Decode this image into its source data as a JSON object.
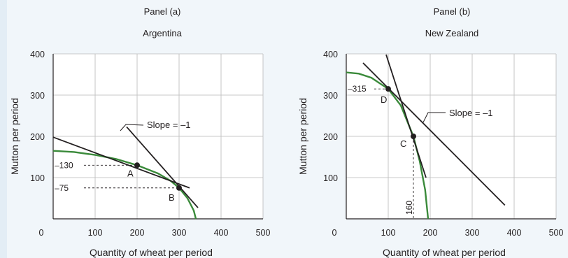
{
  "chart_data": [
    {
      "type": "line",
      "panel_label": "Panel (a)",
      "title": "Argentina",
      "xlabel": "Quantity of wheat per period",
      "ylabel": "Mutton per period",
      "xlim": [
        0,
        500
      ],
      "ylim": [
        0,
        400
      ],
      "x_ticks": [
        0,
        100,
        200,
        300,
        400,
        500
      ],
      "y_ticks": [
        100,
        200,
        300,
        400
      ],
      "grid": true,
      "curve_color": "#3a8a3a",
      "line_color": "#231f20",
      "ppc": [
        [
          0,
          165
        ],
        [
          50,
          162
        ],
        [
          100,
          155
        ],
        [
          150,
          145
        ],
        [
          200,
          130
        ],
        [
          250,
          110
        ],
        [
          280,
          92
        ],
        [
          300,
          75
        ],
        [
          320,
          50
        ],
        [
          335,
          20
        ],
        [
          340,
          0
        ]
      ],
      "tangent_lines": [
        {
          "points": [
            [
              0,
              198
            ],
            [
              325,
              75
            ]
          ]
        },
        {
          "points": [
            [
              175,
              223
            ],
            [
              345,
              27
            ]
          ]
        }
      ],
      "points": [
        {
          "name": "A",
          "x": 200,
          "y": 130,
          "y_label": "130"
        },
        {
          "name": "B",
          "x": 300,
          "y": 75,
          "y_label": "75"
        }
      ],
      "annotation": "Slope = –1"
    },
    {
      "type": "line",
      "panel_label": "Panel (b)",
      "title": "New Zealand",
      "xlabel": "Quantity of wheat per period",
      "ylabel": "Mutton per period",
      "xlim": [
        0,
        500
      ],
      "ylim": [
        0,
        400
      ],
      "x_ticks": [
        0,
        100,
        200,
        300,
        400,
        500
      ],
      "y_ticks": [
        100,
        200,
        300,
        400
      ],
      "grid": true,
      "curve_color": "#3a8a3a",
      "line_color": "#231f20",
      "ppc": [
        [
          0,
          355
        ],
        [
          30,
          352
        ],
        [
          60,
          342
        ],
        [
          100,
          315
        ],
        [
          130,
          275
        ],
        [
          160,
          200
        ],
        [
          175,
          140
        ],
        [
          188,
          70
        ],
        [
          195,
          0
        ]
      ],
      "tangent_lines": [
        {
          "points": [
            [
              40,
              378
            ],
            [
              378,
              33
            ]
          ]
        },
        {
          "points": [
            [
              95,
              398
            ],
            [
              190,
              100
            ]
          ]
        }
      ],
      "points": [
        {
          "name": "D",
          "x": 100,
          "y": 315,
          "y_label": "315"
        },
        {
          "name": "C",
          "x": 160,
          "y": 200,
          "x_label": "160"
        }
      ],
      "annotation": "Slope = –1"
    }
  ]
}
